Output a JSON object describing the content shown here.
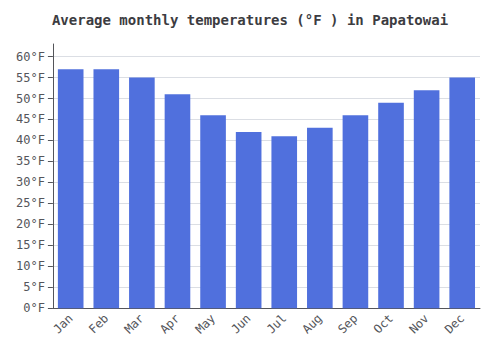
{
  "chart_data": {
    "type": "bar",
    "title": "Average monthly temperatures (°F ) in Papatowai",
    "categories": [
      "Jan",
      "Feb",
      "Mar",
      "Apr",
      "May",
      "Jun",
      "Jul",
      "Aug",
      "Sep",
      "Oct",
      "Nov",
      "Dec"
    ],
    "values": [
      57,
      57,
      55,
      51,
      46,
      42,
      41,
      43,
      46,
      49,
      52,
      55
    ],
    "ylim": [
      0,
      63
    ],
    "yticks": [
      {
        "value": 0,
        "label": "0°F"
      },
      {
        "value": 5,
        "label": "5°F"
      },
      {
        "value": 10,
        "label": "10°F"
      },
      {
        "value": 15,
        "label": "15°F"
      },
      {
        "value": 20,
        "label": "20°F"
      },
      {
        "value": 25,
        "label": "25°F"
      },
      {
        "value": 30,
        "label": "30°F"
      },
      {
        "value": 35,
        "label": "35°F"
      },
      {
        "value": 40,
        "label": "40°F"
      },
      {
        "value": 45,
        "label": "45°F"
      },
      {
        "value": 50,
        "label": "50°F"
      },
      {
        "value": 55,
        "label": "55°F"
      },
      {
        "value": 60,
        "label": "60°F"
      }
    ],
    "grid": true
  }
}
